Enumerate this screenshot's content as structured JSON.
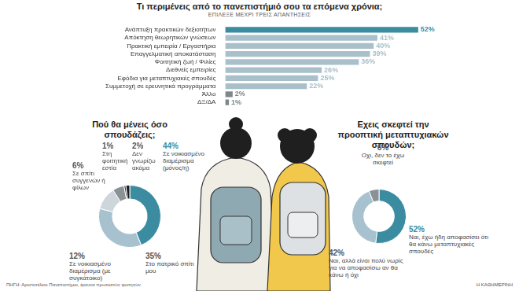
{
  "chart_data": [
    {
      "type": "bar",
      "orientation": "horizontal",
      "title": "Τι περιμένεις από το πανεπιστήμιό σου τα επόμενα χρόνια;",
      "subtitle": "ΕΠΙΛΕΞΕ ΜΕΧΡΙ ΤΡΕΙΣ ΑΠΑΝΤΗΣΕΙΣ",
      "categories": [
        "Ανάπτυξη πρακτικών δεξιοτήτων",
        "Απόκτηση θεωρητικών γνώσεων",
        "Πρακτική εμπειρία / Εργαστήρια",
        "Επαγγελματική αποκατάσταση",
        "Φοιτητική ζωή / Φιλίες",
        "Διεθνείς εμπειρίες",
        "Εφόδια για μεταπτυχιακές σπουδές",
        "Συμμετοχή σε ερευνητικά προγράμματα",
        "Άλλο",
        "ΔΞ/ΔΑ"
      ],
      "values": [
        52,
        41,
        40,
        39,
        36,
        26,
        25,
        22,
        2,
        1
      ],
      "value_labels": [
        "52%",
        "41%",
        "40%",
        "39%",
        "36%",
        "26%",
        "25%",
        "22%",
        "2%",
        "1%"
      ],
      "colors": [
        "#3b8ca0",
        "#a9c0cb",
        "#a9c0cb",
        "#a9c0cb",
        "#a9c0cb",
        "#a9c0cb",
        "#a9c0cb",
        "#a9c0cb",
        "#7d878c",
        "#7d878c"
      ],
      "xlim": [
        0,
        55
      ],
      "grid": false,
      "tick_labels": "y",
      "data_labels": true
    },
    {
      "type": "doughnut",
      "title": "Πού θα μένεις όσο σπουδάζεις;",
      "categories": [
        "Σε νοικιασμένο διαμέρισμα (μόνος/η)",
        "Στο πατρικό σπίτι μου",
        "Σε νοικιασμένο διαμέρισμα (με συγκάτοικο)",
        "Σε σπίτι συγγενών ή φίλων",
        "Στη φοιτητική εστία",
        "Δεν γνωρίζω ακόμα"
      ],
      "values": [
        44,
        35,
        12,
        6,
        1,
        2
      ],
      "value_labels": [
        "44%",
        "35%",
        "12%",
        "6%",
        "1%",
        "2%"
      ],
      "colors": [
        "#3b8ca0",
        "#a7c2ce",
        "#cdd6da",
        "#8b9296",
        "#3f3f3f",
        "#1c1c1c"
      ],
      "data_labels": true
    },
    {
      "type": "doughnut",
      "title": "Εχεις σκεφτεί την προοπτική μεταπτυχιακών σπουδών;",
      "categories": [
        "Ναι, έχω ήδη αποφασίσει ότι θα κάνω μεταπτυχιακές σπουδές",
        "Ναι, αλλά είναι πολύ νωρίς για να αποφασίσω αν θα κάνω ή όχι",
        "Οχι, δεν το έχω σκεφτεί"
      ],
      "values": [
        52,
        42,
        6
      ],
      "value_labels": [
        "52%",
        "42%",
        "6%"
      ],
      "colors": [
        "#3b8ca0",
        "#a7c2ce",
        "#8b9296"
      ],
      "data_labels": true
    }
  ],
  "source": "ΠΗΓΗ: Αριστοτέλειο Πανεπιστήμιο, έρευνα πρωτοετών φοιτητών",
  "credit": "Η ΚΑΘΗΜΕΡΙΝΗ"
}
